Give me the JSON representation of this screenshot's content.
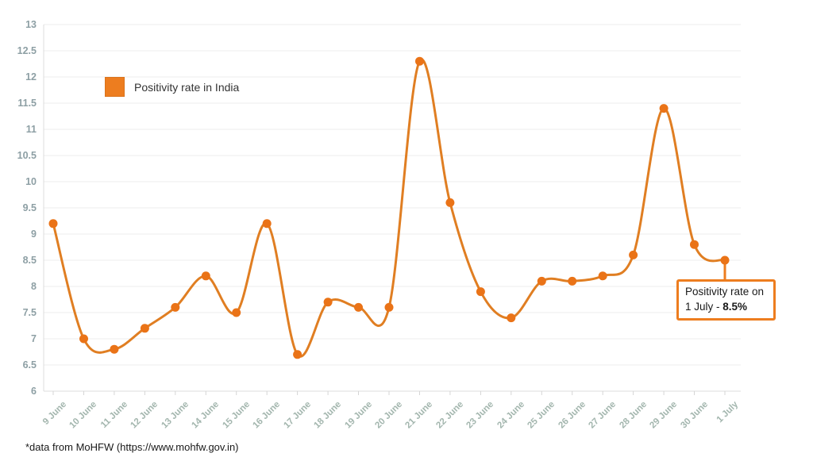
{
  "chart_data": {
    "type": "line",
    "title": "",
    "series": [
      {
        "name": "Positivity rate in India",
        "values": [
          9.2,
          7.0,
          6.8,
          7.2,
          7.6,
          8.2,
          7.5,
          9.2,
          6.7,
          7.7,
          7.6,
          7.6,
          12.3,
          9.6,
          7.9,
          7.4,
          8.1,
          8.1,
          8.2,
          8.6,
          11.4,
          8.8,
          8.5
        ]
      }
    ],
    "categories": [
      "9 June",
      "10 June",
      "11 June",
      "12 June",
      "13 June",
      "14 June",
      "15 June",
      "16 June",
      "17 June",
      "18 June",
      "19 June",
      "20 June",
      "21 June",
      "22 June",
      "23 June",
      "24 June",
      "25 June",
      "26 June",
      "27 June",
      "28 June",
      "29 June",
      "30 June",
      "1 July"
    ],
    "xlabel": "",
    "ylabel": "",
    "ylim": [
      6,
      13
    ],
    "ytick_step": 0.5,
    "grid": "horizontal",
    "legend_position": "top-left",
    "smooth": true,
    "markers": true
  },
  "colors": {
    "accent": "#ED7D1F",
    "line": "#E07E22",
    "marker": "#EA7317",
    "grid": "#EDEDED",
    "axis": "#DCDCDC",
    "tick": "#D5D5D5",
    "y_label": "#8D9FA4",
    "x_label": "#A3B6AE"
  },
  "legend": {
    "label": "Positivity rate in India"
  },
  "annotation": {
    "line1": "Positivity rate on",
    "line2_prefix": "1 July - ",
    "value": "8.5%"
  },
  "footer": {
    "source_note": "*data from MoHFW (https://www.mohfw.gov.in)"
  }
}
